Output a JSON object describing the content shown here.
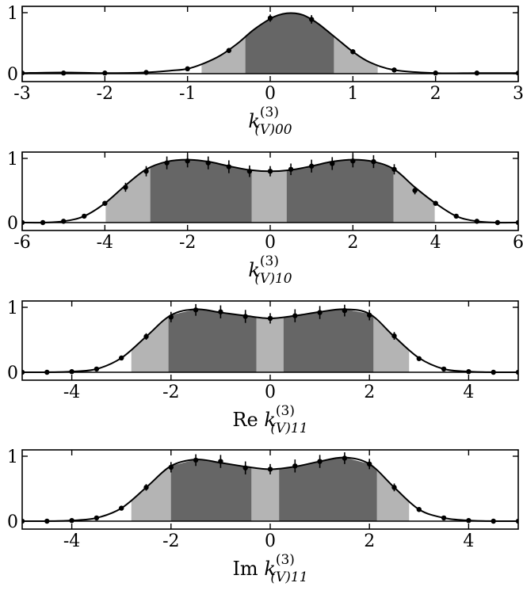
{
  "colors": {
    "band_1sigma": "#666666",
    "band_2sigma": "#b4b4b4",
    "curve": "#000000",
    "points": "#000000",
    "axes": "#000000",
    "background": "#ffffff"
  },
  "chart_data": [
    {
      "type": "area",
      "xlabel_prefix": "",
      "xlabel_main": "k",
      "xlabel_sup": "(3)",
      "xlabel_sub": "(V)00",
      "xlim": [
        -3,
        3
      ],
      "ylim": [
        0,
        1.05
      ],
      "xticks": [
        -3,
        -2,
        -1,
        0,
        1,
        2,
        3
      ],
      "xtick_labels": [
        "-3",
        "-2",
        "-1",
        "0",
        "1",
        "2",
        "3"
      ],
      "yticks": [
        0,
        1
      ],
      "ytick_labels": [
        "0",
        "1"
      ],
      "bands": {
        "sigma2": [
          -0.83,
          1.3
        ],
        "sigma1": [
          -0.3,
          0.77
        ]
      },
      "curve": {
        "x": [
          -3,
          -2.5,
          -2,
          -1.5,
          -1.2,
          -1,
          -0.8,
          -0.6,
          -0.4,
          -0.2,
          0,
          0.1,
          0.2,
          0.3,
          0.4,
          0.5,
          0.6,
          0.8,
          1,
          1.2,
          1.5,
          2,
          2.5,
          3
        ],
        "y": [
          0.01,
          0.02,
          0.01,
          0.02,
          0.05,
          0.08,
          0.17,
          0.3,
          0.49,
          0.72,
          0.9,
          0.96,
          0.99,
          0.99,
          0.96,
          0.89,
          0.8,
          0.58,
          0.36,
          0.19,
          0.06,
          0.01,
          0.01,
          0.01
        ]
      },
      "points": {
        "x": [
          -3,
          -2.5,
          -2,
          -1.5,
          -1,
          -0.5,
          0,
          0.5,
          1,
          1.5,
          2,
          2.5,
          3
        ],
        "y": [
          0.01,
          0.01,
          0.01,
          0.02,
          0.08,
          0.38,
          0.91,
          0.89,
          0.36,
          0.06,
          0.01,
          0.01,
          0.01
        ],
        "err": [
          0,
          0,
          0,
          0,
          0,
          0.04,
          0.06,
          0.07,
          0.04,
          0,
          0,
          0,
          0
        ]
      }
    },
    {
      "type": "area",
      "xlabel_prefix": "",
      "xlabel_main": "k",
      "xlabel_sup": "(3)",
      "xlabel_sub": "(V)10",
      "xlim": [
        -6,
        6
      ],
      "ylim": [
        0,
        1.05
      ],
      "xticks": [
        -6,
        -4,
        -2,
        0,
        2,
        4,
        6
      ],
      "xtick_labels": [
        "-6",
        "-4",
        "-2",
        "0",
        "2",
        "4",
        "6"
      ],
      "yticks": [
        0,
        1
      ],
      "ytick_labels": [
        "0",
        "1"
      ],
      "bands": {
        "sigma2": [
          -3.98,
          3.98
        ],
        "sigma1_left": [
          -2.9,
          -0.45
        ],
        "sigma1_right": [
          0.4,
          2.98
        ]
      },
      "curve": {
        "x": [
          -6,
          -5.5,
          -5,
          -4.5,
          -4,
          -3.5,
          -3,
          -2.5,
          -2,
          -1.5,
          -1,
          -0.5,
          0,
          0.5,
          1,
          1.5,
          2,
          2.5,
          3,
          3.5,
          4,
          4.5,
          5,
          5.5,
          6
        ],
        "y": [
          0.0,
          0.0,
          0.02,
          0.1,
          0.3,
          0.58,
          0.83,
          0.95,
          0.98,
          0.95,
          0.88,
          0.82,
          0.8,
          0.82,
          0.88,
          0.95,
          0.98,
          0.95,
          0.83,
          0.55,
          0.3,
          0.1,
          0.02,
          0.0,
          0.0
        ]
      },
      "points": {
        "x": [
          -6,
          -5.5,
          -5,
          -4.5,
          -4,
          -3.5,
          -3,
          -2.5,
          -2,
          -1.5,
          -1,
          -0.5,
          0,
          0.5,
          1,
          1.5,
          2,
          2.5,
          3,
          3.5,
          4,
          4.5,
          5,
          5.5,
          6
        ],
        "y": [
          0.0,
          0.0,
          0.02,
          0.1,
          0.3,
          0.55,
          0.8,
          0.93,
          0.96,
          0.93,
          0.87,
          0.8,
          0.8,
          0.83,
          0.88,
          0.92,
          0.96,
          0.95,
          0.83,
          0.5,
          0.3,
          0.1,
          0.02,
          0.0,
          0.0
        ],
        "err": [
          0,
          0,
          0,
          0,
          0.03,
          0.07,
          0.08,
          0.1,
          0.1,
          0.1,
          0.1,
          0.09,
          0.08,
          0.09,
          0.1,
          0.1,
          0.1,
          0.1,
          0.08,
          0.06,
          0.03,
          0,
          0,
          0,
          0
        ]
      }
    },
    {
      "type": "area",
      "xlabel_prefix": "Re ",
      "xlabel_main": "k",
      "xlabel_sup": "(3)",
      "xlabel_sub": "(V)11",
      "xlim": [
        -5,
        5
      ],
      "ylim": [
        0,
        1.05
      ],
      "xticks": [
        -4,
        -2,
        0,
        2,
        4
      ],
      "xtick_labels": [
        "-4",
        "-2",
        "0",
        "2",
        "4"
      ],
      "yticks": [
        0,
        1
      ],
      "ytick_labels": [
        "0",
        "1"
      ],
      "bands": {
        "sigma2": [
          -2.8,
          2.8
        ],
        "sigma1_left": [
          -2.05,
          -0.28
        ],
        "sigma1_right": [
          0.27,
          2.08
        ]
      },
      "curve": {
        "x": [
          -5,
          -4.5,
          -4,
          -3.5,
          -3,
          -2.5,
          -2,
          -1.5,
          -1,
          -0.5,
          0,
          0.5,
          1,
          1.5,
          2,
          2.5,
          3,
          3.5,
          4,
          4.5,
          5
        ],
        "y": [
          0.0,
          0.0,
          0.01,
          0.05,
          0.22,
          0.55,
          0.88,
          0.97,
          0.92,
          0.87,
          0.83,
          0.87,
          0.93,
          0.97,
          0.9,
          0.55,
          0.22,
          0.05,
          0.01,
          0.0,
          0.0
        ]
      },
      "points": {
        "x": [
          -5,
          -4.5,
          -4,
          -3.5,
          -3,
          -2.5,
          -2,
          -1.5,
          -1,
          -0.5,
          0,
          0.5,
          1,
          1.5,
          2,
          2.5,
          3,
          3.5,
          4,
          4.5,
          5
        ],
        "y": [
          0.0,
          0.0,
          0.01,
          0.05,
          0.22,
          0.55,
          0.85,
          0.96,
          0.93,
          0.86,
          0.83,
          0.87,
          0.92,
          0.95,
          0.88,
          0.56,
          0.21,
          0.05,
          0.01,
          0.0,
          0.0
        ],
        "err": [
          0,
          0,
          0,
          0,
          0.03,
          0.05,
          0.08,
          0.09,
          0.1,
          0.1,
          0.08,
          0.1,
          0.1,
          0.09,
          0.08,
          0.06,
          0.03,
          0,
          0,
          0,
          0
        ]
      }
    },
    {
      "type": "area",
      "xlabel_prefix": "Im ",
      "xlabel_main": "k",
      "xlabel_sup": "(3)",
      "xlabel_sub": "(V)11",
      "xlim": [
        -5,
        5
      ],
      "ylim": [
        0,
        1.05
      ],
      "xticks": [
        -4,
        -2,
        0,
        2,
        4
      ],
      "xtick_labels": [
        "-4",
        "-2",
        "0",
        "2",
        "4"
      ],
      "yticks": [
        0,
        1
      ],
      "ytick_labels": [
        "0",
        "1"
      ],
      "bands": {
        "sigma2": [
          -2.8,
          2.8
        ],
        "sigma1_left": [
          -2.0,
          -0.38
        ],
        "sigma1_right": [
          0.18,
          2.15
        ]
      },
      "curve": {
        "x": [
          -5,
          -4.5,
          -4,
          -3.5,
          -3,
          -2.5,
          -2,
          -1.5,
          -1,
          -0.5,
          0,
          0.5,
          1,
          1.5,
          2,
          2.5,
          3,
          3.5,
          4,
          4.5,
          5
        ],
        "y": [
          0.0,
          0.0,
          0.01,
          0.05,
          0.2,
          0.52,
          0.85,
          0.95,
          0.9,
          0.84,
          0.8,
          0.84,
          0.92,
          0.98,
          0.88,
          0.52,
          0.18,
          0.05,
          0.01,
          0.0,
          0.0
        ]
      },
      "points": {
        "x": [
          -5,
          -4.5,
          -4,
          -3.5,
          -3,
          -2.5,
          -2,
          -1.5,
          -1,
          -0.5,
          0,
          0.5,
          1,
          1.5,
          2,
          2.5,
          3,
          3.5,
          4,
          4.5,
          5
        ],
        "y": [
          0.0,
          0.0,
          0.01,
          0.05,
          0.2,
          0.52,
          0.83,
          0.94,
          0.92,
          0.82,
          0.8,
          0.85,
          0.92,
          0.97,
          0.88,
          0.52,
          0.18,
          0.05,
          0.01,
          0.0,
          0.0
        ],
        "err": [
          0,
          0,
          0,
          0,
          0.03,
          0.05,
          0.08,
          0.09,
          0.1,
          0.1,
          0.08,
          0.1,
          0.1,
          0.09,
          0.08,
          0.06,
          0.03,
          0,
          0,
          0,
          0
        ]
      }
    }
  ]
}
